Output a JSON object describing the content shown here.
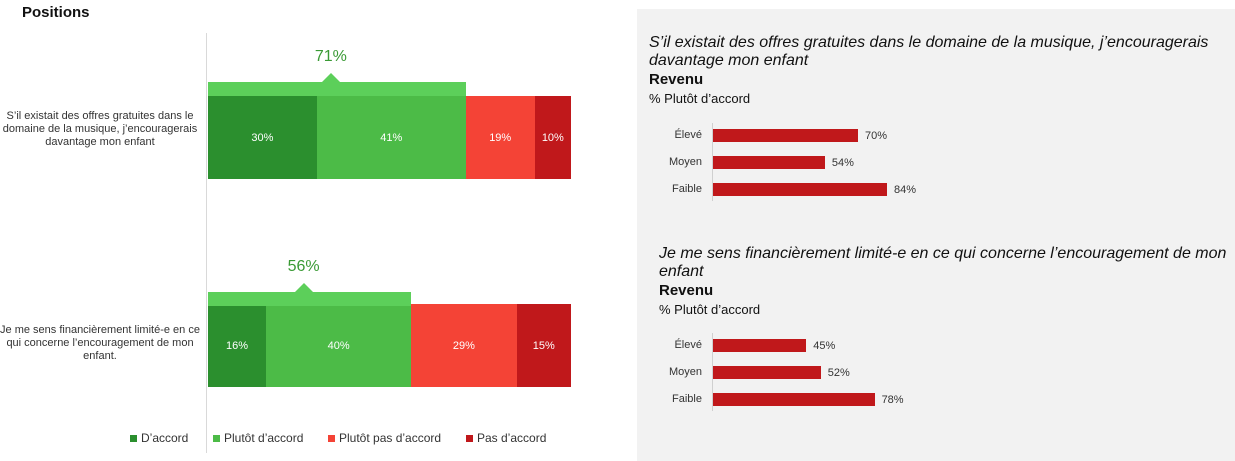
{
  "title": "Positions",
  "legend": [
    {
      "label": "D’accord",
      "color": "#2b8f2e"
    },
    {
      "label": "Plutôt d’accord",
      "color": "#4cbb47"
    },
    {
      "label": "Plutôt pas d’accord",
      "color": "#f44336"
    },
    {
      "label": "Pas d’accord",
      "color": "#c0181b"
    }
  ],
  "colors": {
    "top_bar": "#5ccf5a",
    "top_label": "#3a9a35",
    "right_bar": "#c0181b"
  },
  "chart_data": [
    {
      "type": "bar",
      "orientation": "horizontal",
      "stacked": true,
      "title": "Positions",
      "categories": [
        "S’il existait des offres gratuites dans le domaine de la musique, j’encouragerais davantage mon enfant",
        "Je me sens financièrement limité-e en ce qui concerne l’encouragement de mon enfant."
      ],
      "series": [
        {
          "name": "D’accord",
          "values": [
            30,
            16
          ],
          "labels": [
            "30%",
            "16%"
          ]
        },
        {
          "name": "Plutôt d’accord",
          "values": [
            41,
            40
          ],
          "labels": [
            "41%",
            "40%"
          ]
        },
        {
          "name": "Plutôt pas d’accord",
          "values": [
            19,
            29
          ],
          "labels": [
            "19%",
            "29%"
          ]
        },
        {
          "name": "Pas d’accord",
          "values": [
            10,
            15
          ],
          "labels": [
            "10%",
            "15%"
          ]
        }
      ],
      "totals_agree": [
        71,
        56
      ],
      "totals_agree_labels": [
        "71%",
        "56%"
      ],
      "legend_position": "bottom"
    },
    {
      "type": "bar",
      "orientation": "horizontal",
      "title": "S’il existait des offres gratuites dans le domaine de la musique, j’encouragerais davantage mon enfant",
      "heading": "Revenu",
      "subtitle": "% Plutôt d’accord",
      "categories": [
        "Élevé",
        "Moyen",
        "Faible"
      ],
      "values": [
        70,
        54,
        84
      ],
      "labels": [
        "70%",
        "54%",
        "84%"
      ]
    },
    {
      "type": "bar",
      "orientation": "horizontal",
      "title": "Je me sens financièrement limité-e en ce qui concerne l’encouragement de mon enfant",
      "heading": "Revenu",
      "subtitle": "% Plutôt d’accord",
      "categories": [
        "Élevé",
        "Moyen",
        "Faible"
      ],
      "values": [
        45,
        52,
        78
      ],
      "labels": [
        "45%",
        "52%",
        "78%"
      ]
    }
  ]
}
